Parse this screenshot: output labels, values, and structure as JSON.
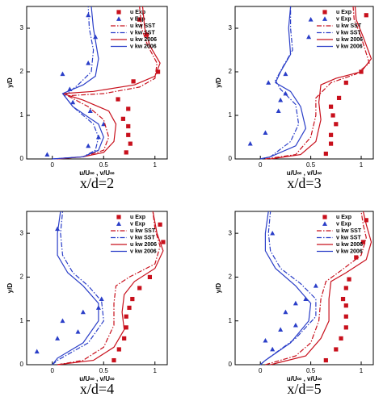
{
  "chart_data": [
    {
      "type": "line",
      "title": "x/d=2",
      "xlabel": "u/U∞ , v/U∞",
      "ylabel": "y/D",
      "xlim": [
        -0.25,
        1.12
      ],
      "ylim": [
        0,
        3.5
      ],
      "xticks": [
        0,
        0.5,
        1
      ],
      "yticks": [
        0,
        1,
        2,
        3
      ],
      "legend": "upper right",
      "series": [
        {
          "name": "u Exp",
          "color": "#c8101c",
          "marker": "square",
          "x": [
            0.85,
            0.92,
            1.03,
            0.79,
            0.64,
            0.74,
            0.69,
            0.74,
            0.74,
            0.76,
            0.72
          ],
          "y": [
            3.2,
            2.85,
            2.0,
            1.78,
            1.37,
            1.15,
            0.92,
            0.75,
            0.55,
            0.35,
            0.15
          ]
        },
        {
          "name": "v Exp",
          "color": "#2a3ec8",
          "marker": "triangle",
          "x": [
            0.35,
            0.42,
            0.35,
            0.1,
            0.17,
            0.2,
            0.37,
            0.5,
            0.45,
            0.35,
            -0.05
          ],
          "y": [
            3.3,
            2.8,
            2.2,
            1.95,
            1.6,
            1.3,
            1.1,
            0.8,
            0.5,
            0.3,
            0.1
          ]
        },
        {
          "name": "u kw SST",
          "color": "#c8101c",
          "line": "dashdot",
          "x": [
            0.02,
            0.3,
            0.5,
            0.55,
            0.5,
            0.35,
            0.15,
            0.5,
            0.85,
            1.0,
            1.02,
            0.93,
            0.87,
            0.85
          ],
          "y": [
            0,
            0.05,
            0.2,
            0.5,
            0.9,
            1.2,
            1.45,
            1.5,
            1.65,
            1.85,
            2.2,
            2.6,
            3.0,
            3.5
          ]
        },
        {
          "name": "v kw SST",
          "color": "#2a3ec8",
          "line": "dashdot",
          "x": [
            0,
            0.3,
            0.42,
            0.45,
            0.4,
            0.2,
            0.12,
            0.25,
            0.38,
            0.4,
            0.36,
            0.35
          ],
          "y": [
            0,
            0.05,
            0.2,
            0.5,
            0.8,
            1.2,
            1.45,
            1.7,
            2.0,
            2.5,
            3.0,
            3.5
          ]
        },
        {
          "name": "u kw 2006",
          "color": "#c8101c",
          "line": "solid",
          "x": [
            0.05,
            0.3,
            0.5,
            0.6,
            0.62,
            0.55,
            0.3,
            0.1,
            0.4,
            0.8,
            1.0,
            1.05,
            0.95,
            0.9,
            0.88
          ],
          "y": [
            0,
            0.05,
            0.15,
            0.4,
            0.8,
            1.1,
            1.35,
            1.5,
            1.55,
            1.7,
            1.9,
            2.2,
            2.6,
            3.0,
            3.5
          ]
        },
        {
          "name": "v kw 2006",
          "color": "#2a3ec8",
          "line": "solid",
          "x": [
            0,
            0.3,
            0.45,
            0.5,
            0.45,
            0.2,
            0.1,
            0.3,
            0.42,
            0.45,
            0.4,
            0.38
          ],
          "y": [
            0,
            0.05,
            0.2,
            0.5,
            0.8,
            1.2,
            1.5,
            1.7,
            1.9,
            2.3,
            3.0,
            3.5
          ]
        }
      ]
    },
    {
      "type": "line",
      "title": "x/d=3",
      "xlabel": "u/U∞ , v/U∞",
      "ylabel": "y/D",
      "xlim": [
        -0.25,
        1.12
      ],
      "ylim": [
        0,
        3.5
      ],
      "xticks": [
        0,
        0.5,
        1
      ],
      "yticks": [
        0,
        1,
        2,
        3
      ],
      "legend": "upper right",
      "series": [
        {
          "name": "u Exp",
          "color": "#c8101c",
          "marker": "square",
          "x": [
            1.05,
            1.0,
            0.85,
            0.78,
            0.7,
            0.72,
            0.75,
            0.7,
            0.7,
            0.65
          ],
          "y": [
            3.3,
            2.0,
            1.75,
            1.4,
            1.2,
            1.0,
            0.8,
            0.55,
            0.35,
            0.12
          ]
        },
        {
          "name": "v Exp",
          "color": "#2a3ec8",
          "marker": "triangle",
          "x": [
            0.5,
            0.48,
            0.25,
            0.08,
            0.25,
            0.2,
            0.18,
            0.05,
            -0.1
          ],
          "y": [
            3.2,
            2.8,
            1.95,
            1.75,
            1.5,
            1.35,
            1.1,
            0.6,
            0.35
          ]
        },
        {
          "name": "u kw SST",
          "color": "#c8101c",
          "line": "dashdot",
          "x": [
            0.05,
            0.35,
            0.5,
            0.55,
            0.55,
            0.7,
            0.95,
            1.08,
            1.0,
            0.93,
            0.92
          ],
          "y": [
            0,
            0.1,
            0.5,
            1.0,
            1.4,
            1.75,
            1.95,
            2.2,
            2.8,
            3.2,
            3.5
          ]
        },
        {
          "name": "v kw SST",
          "color": "#2a3ec8",
          "line": "dashdot",
          "x": [
            0,
            0.1,
            0.3,
            0.38,
            0.35,
            0.2,
            0.15,
            0.22,
            0.32,
            0.3,
            0.3
          ],
          "y": [
            0,
            0.05,
            0.4,
            0.8,
            1.25,
            1.6,
            1.8,
            2.1,
            2.5,
            3.0,
            3.5
          ]
        },
        {
          "name": "u kw 2006",
          "color": "#c8101c",
          "line": "solid",
          "x": [
            0.1,
            0.4,
            0.55,
            0.6,
            0.58,
            0.6,
            0.75,
            1.0,
            1.1,
            1.02,
            0.95,
            0.94
          ],
          "y": [
            0,
            0.1,
            0.4,
            0.9,
            1.3,
            1.7,
            1.85,
            2.0,
            2.3,
            2.8,
            3.2,
            3.5
          ]
        },
        {
          "name": "v kw 2006",
          "color": "#2a3ec8",
          "line": "solid",
          "x": [
            0,
            0.1,
            0.35,
            0.45,
            0.4,
            0.3,
            0.15,
            0.2,
            0.3,
            0.28,
            0.3
          ],
          "y": [
            0,
            0.05,
            0.3,
            0.7,
            1.2,
            1.55,
            1.75,
            2.0,
            2.4,
            3.0,
            3.5
          ]
        }
      ]
    },
    {
      "type": "line",
      "title": "x/d=4",
      "xlabel": "u/U∞ , v/U∞",
      "ylabel": "y/D",
      "xlim": [
        -0.25,
        1.12
      ],
      "ylim": [
        0,
        3.5
      ],
      "xticks": [
        0,
        0.5,
        1
      ],
      "yticks": [
        0,
        1,
        2,
        3
      ],
      "legend": "upper right",
      "series": [
        {
          "name": "u Exp",
          "color": "#c8101c",
          "marker": "square",
          "x": [
            1.05,
            1.08,
            0.95,
            0.85,
            0.78,
            0.75,
            0.72,
            0.72,
            0.7,
            0.65,
            0.6
          ],
          "y": [
            3.2,
            2.8,
            2.0,
            1.75,
            1.5,
            1.3,
            1.1,
            0.85,
            0.6,
            0.35,
            0.1
          ]
        },
        {
          "name": "v Exp",
          "color": "#2a3ec8",
          "marker": "triangle",
          "x": [
            0.05,
            0.48,
            0.45,
            0.3,
            0.1,
            0.25,
            0.05,
            -0.15
          ],
          "y": [
            3.1,
            1.5,
            1.3,
            1.2,
            1.0,
            0.75,
            0.6,
            0.3
          ]
        },
        {
          "name": "u kw SST",
          "color": "#c8101c",
          "line": "dashdot",
          "x": [
            0.05,
            0.3,
            0.5,
            0.6,
            0.6,
            0.62,
            0.75,
            1.0,
            1.05,
            1.0,
            0.98
          ],
          "y": [
            0,
            0.1,
            0.4,
            0.9,
            1.4,
            1.8,
            2.0,
            2.3,
            2.7,
            3.1,
            3.5
          ]
        },
        {
          "name": "v kw SST",
          "color": "#2a3ec8",
          "line": "dashdot",
          "x": [
            0,
            0.05,
            0.35,
            0.5,
            0.48,
            0.35,
            0.2,
            0.1,
            0.08,
            0.1
          ],
          "y": [
            0,
            0.1,
            0.5,
            1.0,
            1.45,
            1.8,
            2.1,
            2.5,
            3.0,
            3.5
          ]
        },
        {
          "name": "u kw 2006",
          "color": "#c8101c",
          "line": "solid",
          "x": [
            0.05,
            0.4,
            0.6,
            0.7,
            0.68,
            0.7,
            0.8,
            1.0,
            1.08,
            1.02,
            0.98
          ],
          "y": [
            0,
            0.1,
            0.4,
            0.8,
            1.2,
            1.6,
            1.9,
            2.2,
            2.6,
            3.0,
            3.5
          ]
        },
        {
          "name": "v kw 2006",
          "color": "#2a3ec8",
          "line": "solid",
          "x": [
            0,
            0.05,
            0.3,
            0.45,
            0.45,
            0.3,
            0.15,
            0.05,
            0.05,
            0.08
          ],
          "y": [
            0,
            0.15,
            0.5,
            1.0,
            1.4,
            1.8,
            2.1,
            2.5,
            3.0,
            3.5
          ]
        }
      ]
    },
    {
      "type": "line",
      "title": "x/d=5",
      "xlabel": "u/U∞ , v/U∞",
      "ylabel": "y/D",
      "xlim": [
        -0.25,
        1.12
      ],
      "ylim": [
        0,
        3.5
      ],
      "xticks": [
        0,
        0.5,
        1
      ],
      "yticks": [
        0,
        1,
        2,
        3
      ],
      "legend": "upper right",
      "series": [
        {
          "name": "u Exp",
          "color": "#c8101c",
          "marker": "square",
          "x": [
            1.05,
            1.02,
            0.95,
            0.88,
            0.85,
            0.82,
            0.85,
            0.85,
            0.85,
            0.8,
            0.75,
            0.65
          ],
          "y": [
            3.3,
            2.8,
            2.45,
            1.95,
            1.75,
            1.5,
            1.35,
            1.1,
            0.85,
            0.6,
            0.35,
            0.1
          ]
        },
        {
          "name": "v Exp",
          "color": "#2a3ec8",
          "marker": "triangle",
          "x": [
            0.12,
            0.55,
            0.45,
            0.35,
            0.25,
            0.35,
            0.2,
            0.05,
            0.12
          ],
          "y": [
            3.0,
            1.8,
            1.5,
            1.4,
            1.2,
            0.9,
            0.8,
            0.55,
            0.35
          ]
        },
        {
          "name": "u kw SST",
          "color": "#c8101c",
          "line": "dashdot",
          "x": [
            0.05,
            0.35,
            0.5,
            0.58,
            0.6,
            0.65,
            0.8,
            1.0,
            1.05,
            1.02,
            1.0
          ],
          "y": [
            0,
            0.2,
            0.5,
            1.0,
            1.5,
            1.9,
            2.15,
            2.5,
            2.9,
            3.2,
            3.5
          ]
        },
        {
          "name": "v kw SST",
          "color": "#2a3ec8",
          "line": "dashdot",
          "x": [
            0,
            0.05,
            0.35,
            0.55,
            0.55,
            0.4,
            0.2,
            0.1,
            0.08,
            0.1
          ],
          "y": [
            0,
            0.1,
            0.6,
            1.1,
            1.5,
            1.85,
            2.2,
            2.6,
            3.0,
            3.5
          ]
        },
        {
          "name": "u kw 2006",
          "color": "#c8101c",
          "line": "solid",
          "x": [
            0.1,
            0.45,
            0.6,
            0.68,
            0.68,
            0.7,
            0.85,
            1.05,
            1.1,
            1.05,
            1.02
          ],
          "y": [
            0,
            0.2,
            0.6,
            1.0,
            1.5,
            1.9,
            2.1,
            2.4,
            2.8,
            3.2,
            3.5
          ]
        },
        {
          "name": "v kw 2006",
          "color": "#2a3ec8",
          "line": "solid",
          "x": [
            0,
            0.05,
            0.3,
            0.48,
            0.5,
            0.35,
            0.15,
            0.05,
            0.05,
            0.08
          ],
          "y": [
            0,
            0.1,
            0.5,
            1.0,
            1.4,
            1.8,
            2.2,
            2.6,
            3.0,
            3.5
          ]
        }
      ]
    }
  ]
}
